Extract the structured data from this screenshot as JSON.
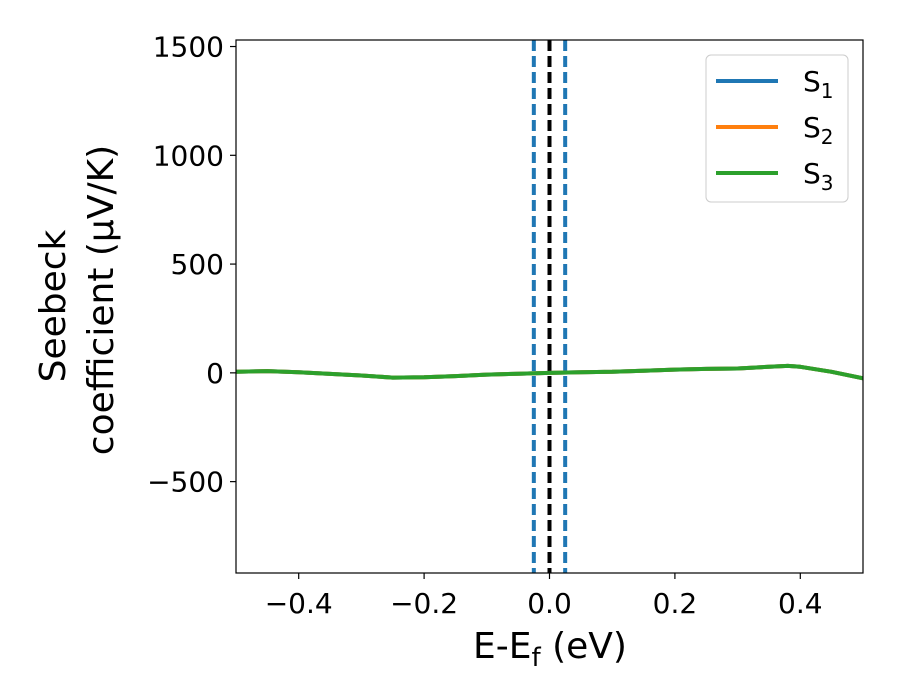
{
  "chart_data": {
    "type": "line",
    "xlabel": "E-E",
    "xlabel_subscript": "f",
    "xlabel_unit": " (eV)",
    "ylabel_line1": "Seebeck",
    "ylabel_line2": "coefficient  (μV/K)",
    "xlim": [
      -0.5,
      0.5
    ],
    "ylim": [
      -920,
      1530
    ],
    "xticks": [
      -0.4,
      -0.2,
      0.0,
      0.2,
      0.4
    ],
    "xtick_labels": [
      "−0.4",
      "−0.2",
      "0.0",
      "0.2",
      "0.4"
    ],
    "yticks": [
      -500,
      0,
      500,
      1000,
      1500
    ],
    "ytick_labels": [
      "−500",
      "0",
      "500",
      "1000",
      "1500"
    ],
    "grid": false,
    "legend_position": "top-right",
    "series": [
      {
        "name": "S",
        "subscript": "1",
        "color": "#1f77b4",
        "x": [
          -0.5,
          -0.45,
          -0.4,
          -0.35,
          -0.3,
          -0.25,
          -0.2,
          -0.15,
          -0.1,
          -0.05,
          0.0,
          0.05,
          0.1,
          0.15,
          0.2,
          0.25,
          0.3,
          0.35,
          0.38,
          0.4,
          0.45,
          0.5
        ],
        "y": [
          5,
          8,
          3,
          -5,
          -12,
          -22,
          -20,
          -15,
          -8,
          -4,
          0,
          3,
          5,
          10,
          15,
          18,
          20,
          28,
          32,
          28,
          5,
          -25
        ]
      },
      {
        "name": "S",
        "subscript": "2",
        "color": "#ff7f0e",
        "x": [
          -0.5,
          -0.45,
          -0.4,
          -0.35,
          -0.3,
          -0.25,
          -0.2,
          -0.15,
          -0.1,
          -0.05,
          0.0,
          0.05,
          0.1,
          0.15,
          0.2,
          0.25,
          0.3,
          0.35,
          0.38,
          0.4,
          0.45,
          0.5
        ],
        "y": [
          5,
          8,
          3,
          -5,
          -12,
          -22,
          -20,
          -15,
          -8,
          -4,
          0,
          3,
          5,
          10,
          15,
          18,
          20,
          28,
          32,
          28,
          5,
          -25
        ]
      },
      {
        "name": "S",
        "subscript": "3",
        "color": "#2ca02c",
        "x": [
          -0.5,
          -0.45,
          -0.4,
          -0.35,
          -0.3,
          -0.25,
          -0.2,
          -0.15,
          -0.1,
          -0.05,
          0.0,
          0.05,
          0.1,
          0.15,
          0.2,
          0.25,
          0.3,
          0.35,
          0.38,
          0.4,
          0.45,
          0.5
        ],
        "y": [
          5,
          8,
          3,
          -5,
          -12,
          -22,
          -20,
          -15,
          -8,
          -4,
          0,
          3,
          5,
          10,
          15,
          18,
          20,
          28,
          32,
          28,
          5,
          -25
        ]
      }
    ],
    "vlines": [
      {
        "x": 0.0,
        "color": "#000000",
        "style": "dashed"
      },
      {
        "x": -0.025,
        "color": "#1f77b4",
        "style": "dashed"
      },
      {
        "x": 0.025,
        "color": "#1f77b4",
        "style": "dashed"
      }
    ]
  }
}
